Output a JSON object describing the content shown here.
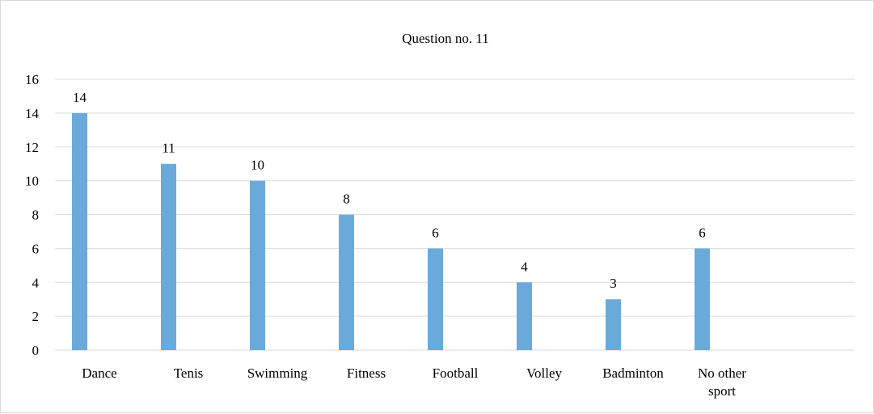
{
  "chart_data": {
    "type": "bar",
    "title": "Question no. 11",
    "xlabel": "",
    "ylabel": "",
    "ylim": [
      0,
      16
    ],
    "yticks": [
      "0",
      "2",
      "4",
      "6",
      "8",
      "10",
      "12",
      "14",
      "16"
    ],
    "grid": true,
    "legend": "none",
    "categories": [
      [
        "Dance"
      ],
      [
        "Tenis"
      ],
      [
        "Swimming"
      ],
      [
        "Fitness"
      ],
      [
        "Football"
      ],
      [
        "Volley"
      ],
      [
        "Badminton"
      ],
      [
        "No other",
        "sport"
      ]
    ],
    "values": [
      14,
      11,
      10,
      8,
      6,
      4,
      3,
      6
    ],
    "data_labels": [
      "14",
      "11",
      "10",
      "8",
      "6",
      "4",
      "3",
      "6"
    ],
    "bar_color": "#6aaadb",
    "grid_color": "#d9d9d9"
  }
}
